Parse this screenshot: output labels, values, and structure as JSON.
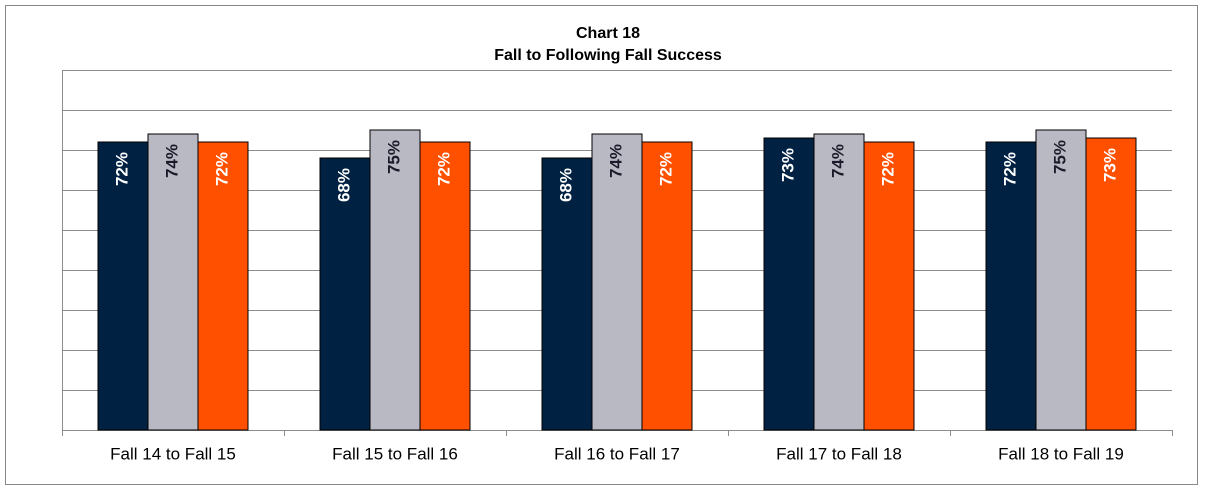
{
  "chart_data": {
    "type": "bar",
    "title": "Chart 18",
    "subtitle": "Fall to Following Fall Success",
    "categories": [
      "Fall 14 to Fall 15",
      "Fall 15 to Fall 16",
      "Fall 16 to Fall 17",
      "Fall 17 to Fall 18",
      "Fall 18 to Fall 19"
    ],
    "series": [
      {
        "color": "#002142",
        "values": [
          72,
          68,
          68,
          73,
          72
        ],
        "value_labels": [
          "72%",
          "68%",
          "68%",
          "73%",
          "72%"
        ]
      },
      {
        "color": "#b9b9c3",
        "values": [
          74,
          75,
          74,
          74,
          75
        ],
        "value_labels": [
          "74%",
          "75%",
          "74%",
          "74%",
          "75%"
        ]
      },
      {
        "color": "#ff5000",
        "values": [
          72,
          72,
          72,
          72,
          73
        ],
        "value_labels": [
          "72%",
          "72%",
          "72%",
          "72%",
          "73%"
        ]
      }
    ],
    "ylim": [
      0,
      90
    ],
    "yticks": [
      0,
      10,
      20,
      30,
      40,
      50,
      60,
      70,
      80,
      90
    ],
    "grid": true
  }
}
